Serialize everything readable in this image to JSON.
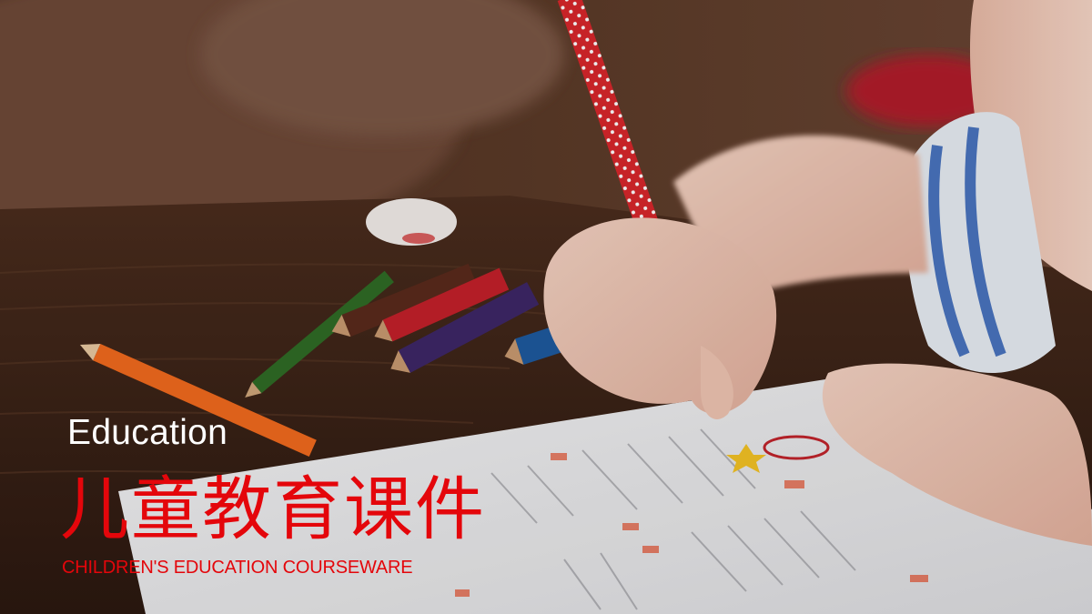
{
  "slide": {
    "eyebrow": "Education",
    "title": "儿童教育课件",
    "subtitle": "CHILDREN'S EDUCATION COURSEWARE"
  },
  "colors": {
    "title_red": "#e4060b",
    "eyebrow_white": "#ffffff",
    "pencil_red": "#d7262b"
  },
  "illustration": {
    "scene": "photo",
    "elements": [
      "child-hand-icon",
      "red-dotted-pencil",
      "colored-pencils",
      "eraser",
      "worksheet",
      "wooden-desk"
    ]
  }
}
